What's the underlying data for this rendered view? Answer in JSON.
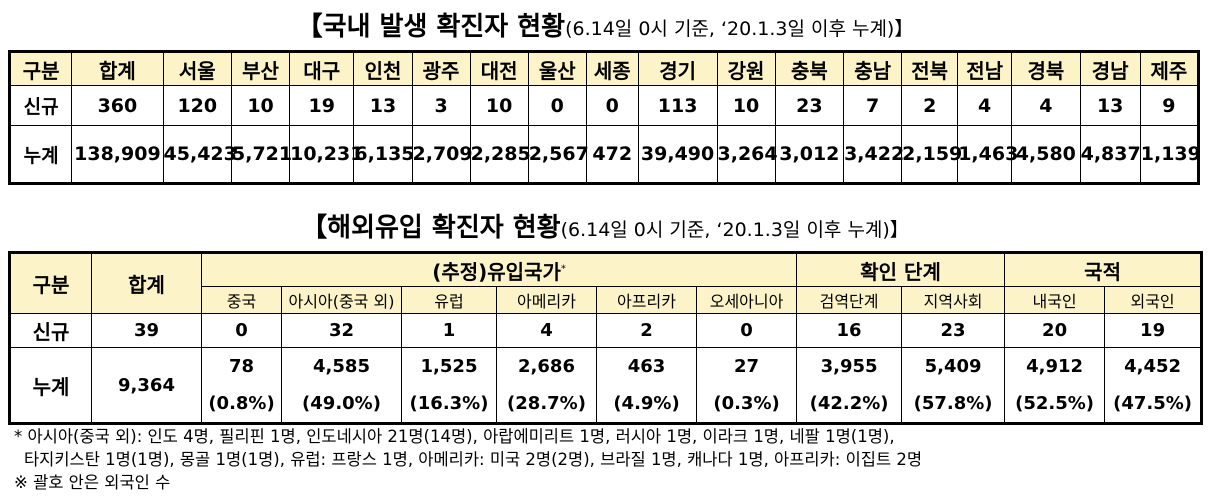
{
  "table1": {
    "title": "【국내 발생 확진자 현황",
    "note": "(6.14일 0시 기준, ‘20.1.3일 이후 누계)】",
    "header": [
      "구분",
      "합계",
      "서울",
      "부산",
      "대구",
      "인천",
      "광주",
      "대전",
      "울산",
      "세종",
      "경기",
      "강원",
      "충북",
      "충남",
      "전북",
      "전남",
      "경북",
      "경남",
      "제주"
    ],
    "rows": [
      [
        "신규",
        "360",
        "120",
        "10",
        "19",
        "13",
        "3",
        "10",
        "0",
        "0",
        "113",
        "10",
        "23",
        "7",
        "2",
        "4",
        "4",
        "13",
        "9"
      ],
      [
        "누계",
        "138,909",
        "45,423",
        "5,721",
        "10,231",
        "6,135",
        "2,709",
        "2,285",
        "2,567",
        "472",
        "39,490",
        "3,264",
        "3,012",
        "3,422",
        "2,159",
        "1,463",
        "4,580",
        "4,837",
        "1,139"
      ]
    ]
  },
  "table2": {
    "title": "【해외유입 확진자 현황",
    "note": "(6.14일 0시 기준, ‘20.1.3일 이후 누계)】",
    "header": {
      "label": "구분",
      "total": "합계",
      "groups": [
        {
          "label": "(추정)유입국가",
          "mark": "*",
          "columns": [
            "중국",
            "아시아(중국 외)",
            "유럽",
            "아메리카",
            "아프리카",
            "오세아니아"
          ]
        },
        {
          "label": "확인 단계",
          "columns": [
            "검역단계",
            "지역사회"
          ]
        },
        {
          "label": "국적",
          "columns": [
            "내국인",
            "외국인"
          ]
        }
      ]
    },
    "rows": {
      "new": {
        "label": "신규",
        "total": "39",
        "values": [
          "0",
          "32",
          "1",
          "4",
          "2",
          "0",
          "16",
          "23",
          "20",
          "19"
        ]
      },
      "cumulative": {
        "label": "누계",
        "total": "9,364",
        "values": [
          "78",
          "4,585",
          "1,525",
          "2,686",
          "463",
          "27",
          "3,955",
          "5,409",
          "4,912",
          "4,452"
        ],
        "percents": [
          "(0.8%)",
          "(49.0%)",
          "(16.3%)",
          "(28.7%)",
          "(4.9%)",
          "(0.3%)",
          "(42.2%)",
          "(57.8%)",
          "(52.5%)",
          "(47.5%)"
        ]
      }
    }
  },
  "footnotes": [
    "* 아시아(중국 외): 인도 4명, 필리핀 1명, 인도네시아 21명(14명), 아랍에미리트 1명, 러시아 1명, 이라크 1명, 네팔 1명(1명),",
    "타지키스탄 1명(1명), 몽골 1명(1명), 유럽: 프랑스 1명, 아메리카: 미국 2명(2명), 브라질 1명, 캐나다 1명,  아프리카: 이집트 2명",
    "※ 괄호 안은 외국인 수"
  ]
}
